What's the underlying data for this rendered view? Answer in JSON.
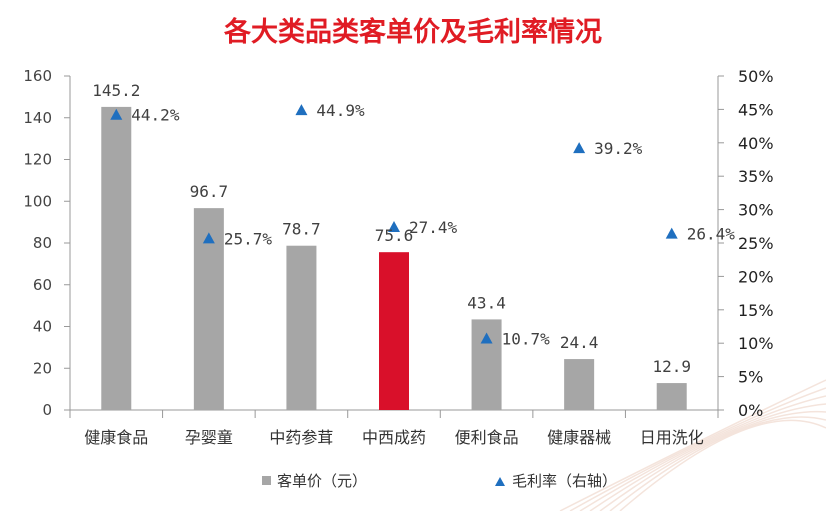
{
  "colors": {
    "title": "#e01c24",
    "bar": "#a6a6a6",
    "bar_highlight": "#d9102a",
    "marker": "#1f6fbf",
    "axis": "#999999"
  },
  "chart_data": {
    "type": "bar",
    "title": "各大类品类客单价及毛利率情况",
    "categories": [
      "健康食品",
      "孕婴童",
      "中药参茸",
      "中西成药",
      "便利食品",
      "健康器械",
      "日用洗化"
    ],
    "highlight_category": "中西成药",
    "series": [
      {
        "name": "客单价（元）",
        "type": "bar",
        "axis": "left",
        "values": [
          145.2,
          96.7,
          78.7,
          75.6,
          43.4,
          24.4,
          12.9
        ],
        "labels": [
          "145.2",
          "96.7",
          "78.7",
          "75.6",
          "43.4",
          "24.4",
          "12.9"
        ]
      },
      {
        "name": "毛利率（右轴）",
        "type": "scatter",
        "marker": "triangle",
        "axis": "right",
        "values": [
          44.2,
          25.7,
          44.9,
          27.4,
          10.7,
          39.2,
          26.4
        ],
        "labels": [
          "44.2%",
          "25.7%",
          "44.9%",
          "27.4%",
          "10.7%",
          "39.2%",
          "26.4%"
        ]
      }
    ],
    "y_left": {
      "range": [
        0,
        160
      ],
      "ticks": [
        0,
        20,
        40,
        60,
        80,
        100,
        120,
        140,
        160
      ],
      "tick_labels": [
        "0",
        "20",
        "40",
        "60",
        "80",
        "100",
        "120",
        "140",
        "160"
      ]
    },
    "y_right": {
      "range": [
        0,
        50
      ],
      "ticks": [
        0,
        5,
        10,
        15,
        20,
        25,
        30,
        35,
        40,
        45,
        50
      ],
      "tick_labels": [
        "0%",
        "5%",
        "10%",
        "15%",
        "20%",
        "25%",
        "30%",
        "35%",
        "40%",
        "45%",
        "50%"
      ]
    },
    "grid": false,
    "legend": {
      "placement": "bottom"
    }
  }
}
